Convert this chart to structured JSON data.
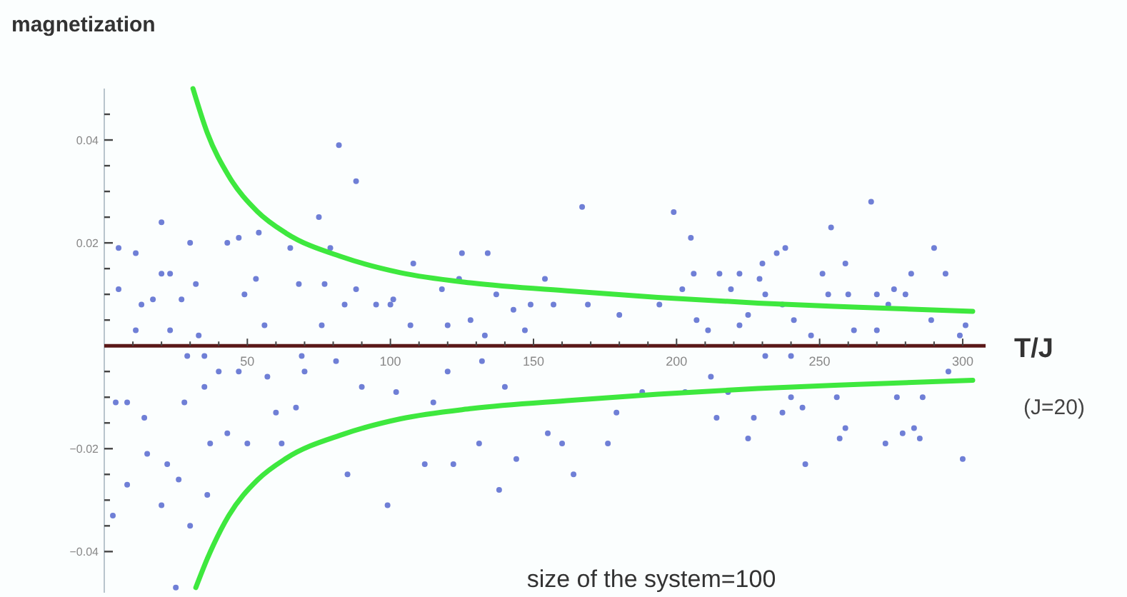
{
  "chart_data": {
    "type": "scatter",
    "ylabel": "magnetization",
    "xlabel": "T/J",
    "annotations": [
      "(J=20)",
      "size of the system=100"
    ],
    "xlim": [
      0,
      308
    ],
    "ylim": [
      -0.048,
      0.05
    ],
    "xticks": [
      {
        "value": 10,
        "label": null
      },
      {
        "value": 20,
        "label": null
      },
      {
        "value": 30,
        "label": null
      },
      {
        "value": 40,
        "label": null
      },
      50,
      {
        "value": 60,
        "label": null
      },
      {
        "value": 70,
        "label": null
      },
      {
        "value": 80,
        "label": null
      },
      {
        "value": 90,
        "label": null
      },
      100,
      {
        "value": 110,
        "label": null
      },
      {
        "value": 120,
        "label": null
      },
      {
        "value": 130,
        "label": null
      },
      {
        "value": 140,
        "label": null
      },
      150,
      {
        "value": 160,
        "label": null
      },
      {
        "value": 170,
        "label": null
      },
      {
        "value": 180,
        "label": null
      },
      {
        "value": 190,
        "label": null
      },
      200,
      {
        "value": 210,
        "label": null
      },
      {
        "value": 220,
        "label": null
      },
      {
        "value": 230,
        "label": null
      },
      {
        "value": 240,
        "label": null
      },
      250,
      {
        "value": 260,
        "label": null
      },
      {
        "value": 270,
        "label": null
      },
      {
        "value": 280,
        "label": null
      },
      {
        "value": 290,
        "label": null
      },
      300
    ],
    "yticks": [
      -0.04,
      {
        "value": -0.035,
        "label": null
      },
      {
        "value": -0.03,
        "label": null
      },
      {
        "value": -0.025,
        "label": null
      },
      -0.02,
      {
        "value": -0.015,
        "label": null
      },
      {
        "value": -0.01,
        "label": null
      },
      {
        "value": -0.005,
        "label": null
      },
      {
        "value": 0.005,
        "label": null
      },
      {
        "value": 0.01,
        "label": null
      },
      {
        "value": 0.015,
        "label": null
      },
      0.02,
      {
        "value": 0.025,
        "label": null
      },
      {
        "value": 0.03,
        "label": null
      },
      {
        "value": 0.035,
        "label": null
      },
      0.04,
      {
        "value": 0.045,
        "label": null
      }
    ],
    "grid": false,
    "series": [
      {
        "marker": "circle",
        "color": "#6f7fd6",
        "x": [
          5,
          11,
          20,
          5,
          13,
          17,
          20,
          23,
          27,
          11,
          23,
          30,
          32,
          33,
          43,
          47,
          49,
          53,
          54,
          56,
          65,
          68,
          75,
          77,
          76,
          79,
          82,
          84,
          88,
          88,
          95,
          100,
          101,
          107,
          108,
          120,
          124,
          125,
          134,
          137,
          143,
          149,
          154,
          157,
          118,
          128,
          133,
          147,
          167,
          199,
          205,
          202,
          206,
          215,
          222,
          229,
          230,
          235,
          238,
          219,
          231,
          251,
          254,
          259,
          253,
          260,
          268,
          270,
          276,
          280,
          282,
          290,
          294,
          169,
          180,
          194,
          207,
          211,
          222,
          225,
          237,
          241,
          247,
          262,
          270,
          274,
          289,
          301,
          299,
          29,
          35,
          40,
          47,
          57,
          69,
          70,
          81,
          102,
          4,
          8,
          14,
          28,
          35,
          60,
          67,
          43,
          50,
          37,
          62,
          15,
          22,
          26,
          8,
          36,
          20,
          30,
          3,
          25,
          85,
          99,
          112,
          122,
          131,
          144,
          138,
          132,
          140,
          155,
          115,
          120,
          90,
          179,
          160,
          176,
          164,
          214,
          227,
          237,
          244,
          225,
          245,
          259,
          257,
          273,
          279,
          283,
          285,
          300,
          286,
          277,
          256,
          240,
          212,
          188,
          203,
          218,
          295,
          231,
          240
        ],
        "values": [
          0.019,
          0.018,
          0.024,
          0.011,
          0.008,
          0.009,
          0.014,
          0.014,
          0.009,
          0.003,
          0.003,
          0.02,
          0.012,
          0.002,
          0.02,
          0.021,
          0.01,
          0.013,
          0.022,
          0.004,
          0.019,
          0.012,
          0.025,
          0.012,
          0.004,
          0.019,
          0.039,
          0.008,
          0.011,
          0.032,
          0.008,
          0.008,
          0.009,
          0.004,
          0.016,
          0.004,
          0.013,
          0.018,
          0.018,
          0.01,
          0.007,
          0.008,
          0.013,
          0.008,
          0.011,
          0.005,
          0.002,
          0.003,
          0.027,
          0.026,
          0.021,
          0.011,
          0.014,
          0.014,
          0.014,
          0.013,
          0.016,
          0.018,
          0.019,
          0.011,
          0.01,
          0.014,
          0.023,
          0.016,
          0.01,
          0.01,
          0.028,
          0.01,
          0.011,
          0.01,
          0.014,
          0.019,
          0.014,
          0.008,
          0.006,
          0.008,
          0.005,
          0.003,
          0.004,
          0.006,
          0.008,
          0.005,
          0.002,
          0.003,
          0.003,
          0.008,
          0.005,
          0.004,
          0.002,
          -0.002,
          -0.002,
          -0.005,
          -0.005,
          -0.006,
          -0.002,
          -0.005,
          -0.003,
          -0.009,
          -0.011,
          -0.011,
          -0.014,
          -0.011,
          -0.008,
          -0.013,
          -0.012,
          -0.017,
          -0.019,
          -0.019,
          -0.019,
          -0.021,
          -0.023,
          -0.026,
          -0.027,
          -0.029,
          -0.031,
          -0.035,
          -0.033,
          -0.047,
          -0.025,
          -0.031,
          -0.023,
          -0.023,
          -0.019,
          -0.022,
          -0.028,
          -0.003,
          -0.008,
          -0.017,
          -0.011,
          -0.005,
          -0.008,
          -0.013,
          -0.019,
          -0.019,
          -0.025,
          -0.014,
          -0.014,
          -0.013,
          -0.012,
          -0.018,
          -0.023,
          -0.016,
          -0.018,
          -0.019,
          -0.017,
          -0.016,
          -0.018,
          -0.022,
          -0.01,
          -0.01,
          -0.01,
          -0.01,
          -0.006,
          -0.009,
          -0.009,
          -0.009,
          -0.005,
          -0.002,
          -0.002
        ]
      },
      {
        "type": "line",
        "color": "#3ee83e",
        "x": [
          31,
          36,
          43.5,
          53.5,
          63.5,
          83.5,
          103.5,
          128.5,
          163.5,
          193.5,
          228.5,
          263.5,
          303.5
        ],
        "values": [
          0.05,
          0.0414,
          0.033,
          0.0261,
          0.0219,
          0.0172,
          0.0142,
          0.0122,
          0.0106,
          0.0094,
          0.0083,
          0.0075,
          0.0067
        ]
      },
      {
        "type": "line",
        "color": "#3ee83e",
        "x": [
          32,
          36,
          43.5,
          53.5,
          63.5,
          83.5,
          103.5,
          128.5,
          163.5,
          193.5,
          228.5,
          263.5,
          303.5
        ],
        "values": [
          -0.047,
          -0.0414,
          -0.033,
          -0.0261,
          -0.0219,
          -0.0172,
          -0.0142,
          -0.0122,
          -0.0106,
          -0.0094,
          -0.0083,
          -0.0075,
          -0.0067
        ]
      }
    ]
  }
}
